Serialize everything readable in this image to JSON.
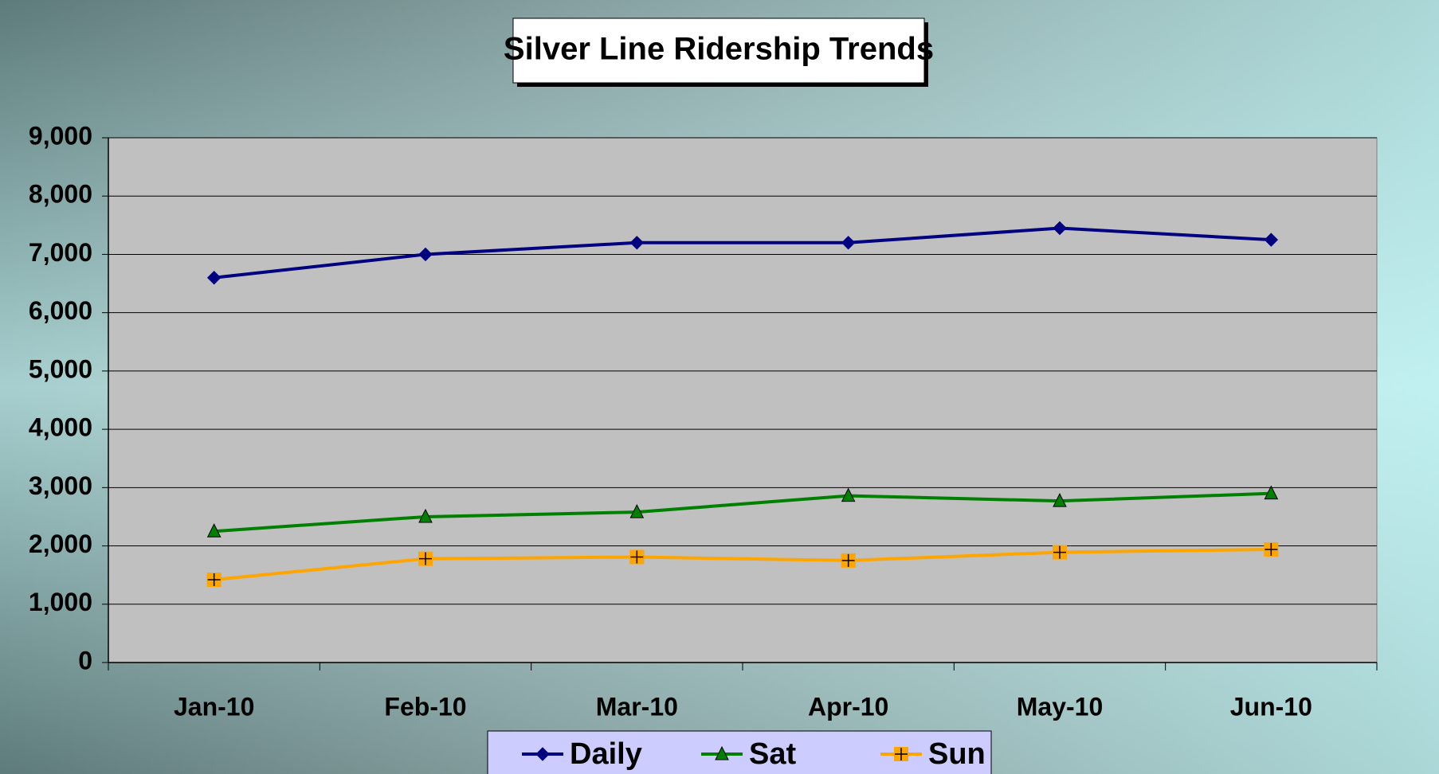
{
  "chart_data": {
    "type": "line",
    "title": "Silver Line Ridership Trends",
    "categories": [
      "Jan-10",
      "Feb-10",
      "Mar-10",
      "Apr-10",
      "May-10",
      "Jun-10"
    ],
    "series": [
      {
        "name": "Daily",
        "color": "#000080",
        "marker": "diamond",
        "values": [
          6600,
          7000,
          7200,
          7200,
          7450,
          7250
        ]
      },
      {
        "name": "Sat",
        "color": "#008000",
        "marker": "triangle",
        "values": [
          2250,
          2500,
          2580,
          2860,
          2770,
          2900
        ]
      },
      {
        "name": "Sun",
        "color": "#ffa500",
        "marker": "square-plus",
        "values": [
          1420,
          1780,
          1810,
          1750,
          1890,
          1940
        ]
      }
    ],
    "ylim": [
      0,
      9000
    ],
    "yticks": [
      0,
      {
        "value": 1000,
        "label": "1,000"
      },
      {
        "value": 2000,
        "label": "2,000"
      },
      {
        "value": 3000,
        "label": "3,000"
      },
      {
        "value": 4000,
        "label": "4,000"
      },
      {
        "value": 5000,
        "label": "5,000"
      },
      {
        "value": 6000,
        "label": "6,000"
      },
      {
        "value": 7000,
        "label": "7,000"
      },
      {
        "value": 8000,
        "label": "8,000"
      },
      {
        "value": 9000,
        "label": "9,000"
      }
    ],
    "grid": true,
    "legend": "bottom"
  }
}
